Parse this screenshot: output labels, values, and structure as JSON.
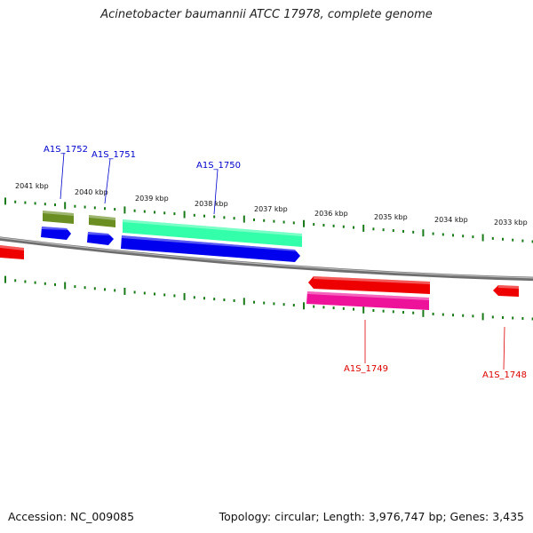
{
  "title": "Acinetobacter baumannii ATCC 17978, complete genome",
  "accession_label": "Accession: NC_009085",
  "summary_label": "Topology: circular; Length: 3,976,747 bp; Genes: 3,435",
  "colors": {
    "backbone": "#8a8a8a",
    "tick": "#1a7a1a",
    "forward_label": "#0000cc",
    "reverse_label": "#dd0000",
    "cds_blue": "#0000ee",
    "cds_red": "#ee0000",
    "olive": "#6b8e23",
    "teal": "#33ffaa",
    "magenta": "#ee1199"
  },
  "ticks": {
    "labels": [
      "2041 kbp",
      "2040 kbp",
      "2039 kbp",
      "2038 kbp",
      "2037 kbp",
      "2036 kbp",
      "2035 kbp",
      "2034 kbp",
      "2033 kbp"
    ]
  },
  "genes": {
    "forward": [
      "A1S_1752",
      "A1S_1751",
      "A1S_1750"
    ],
    "reverse": [
      "A1S_1749",
      "A1S_1748"
    ]
  }
}
